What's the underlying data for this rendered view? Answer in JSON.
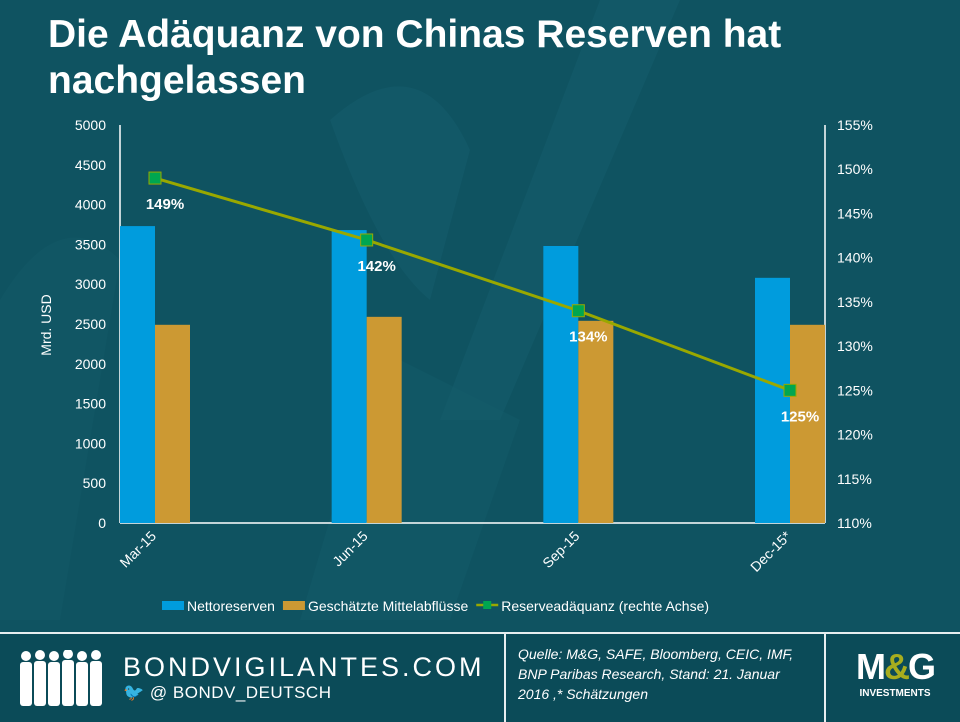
{
  "title": "Die Adäquanz von Chinas Reserven hat nachgelassen",
  "chart_data": {
    "type": "bar",
    "title": "Die Adäquanz von Chinas Reserven hat nachgelassen",
    "categories": [
      "Mar-15",
      "Jun-15",
      "Sep-15",
      "Dec-15*"
    ],
    "ylabel": "Mrd. USD",
    "ylim": [
      0,
      5000
    ],
    "yticks": [
      "0",
      "500",
      "1000",
      "1500",
      "2000",
      "2500",
      "3000",
      "3500",
      "4000",
      "4500",
      "5000"
    ],
    "y2lim": [
      110,
      155
    ],
    "y2ticks": [
      "110%",
      "115%",
      "120%",
      "125%",
      "130%",
      "135%",
      "140%",
      "145%",
      "150%",
      "155%"
    ],
    "series": [
      {
        "name": "Nettoreserven",
        "type": "bar",
        "axis": "left",
        "color": "#009cdd",
        "values": [
          3730,
          3680,
          3480,
          3080
        ]
      },
      {
        "name": "Geschätzte Mittelabflüsse",
        "type": "bar",
        "axis": "left",
        "color": "#cc9933",
        "values": [
          2490,
          2590,
          2540,
          2490
        ]
      },
      {
        "name": "Reserveadäquanz (rechte Achse)",
        "type": "line",
        "axis": "right",
        "color": "#99a800",
        "marker_color": "#00a650",
        "values": [
          149,
          142,
          134,
          125
        ],
        "labels": [
          "149%",
          "142%",
          "134%",
          "125%"
        ]
      }
    ],
    "legend": "bottom"
  },
  "footer": {
    "site": "BONDVIGILANTES.COM",
    "twitter": "@ BONDV_DEUTSCH",
    "source": "Quelle: M&G, SAFE, Bloomberg, CEIC, IMF, BNP Paribas Research, Stand: 21. Januar 2016 ,* Schätzungen",
    "logo_text": "M&G INVESTMENTS"
  }
}
